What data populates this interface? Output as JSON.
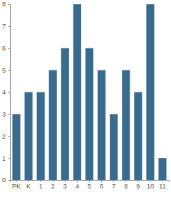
{
  "chart_data": {
    "type": "bar",
    "categories": [
      "PK",
      "K",
      "1",
      "2",
      "3",
      "4",
      "5",
      "6",
      "7",
      "8",
      "9",
      "10",
      "11"
    ],
    "values": [
      3,
      4,
      4,
      5,
      6,
      8,
      6,
      5,
      3,
      5,
      4,
      8,
      1
    ],
    "color": "#3a6b8c",
    "ylim": [
      0,
      8
    ],
    "yticks": [
      0,
      1,
      2,
      3,
      4,
      5,
      6,
      7,
      8
    ],
    "grid": false
  }
}
